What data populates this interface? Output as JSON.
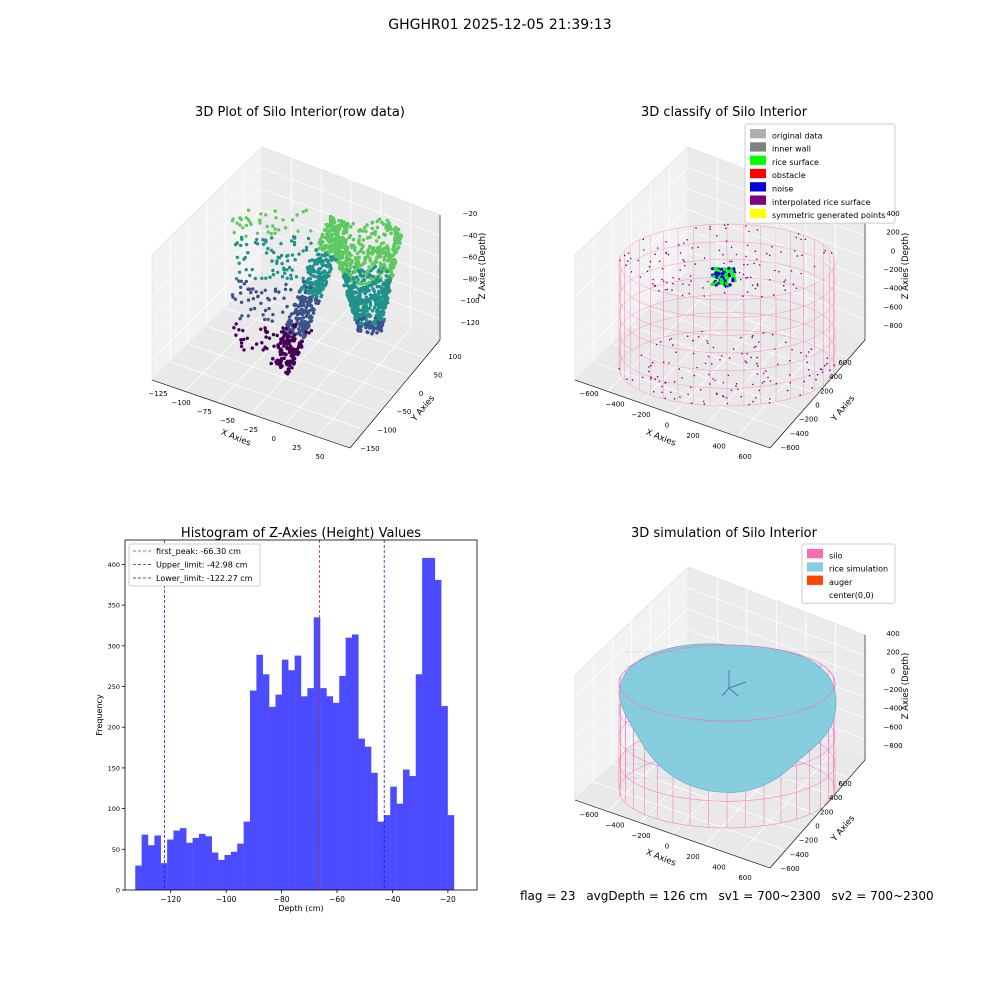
{
  "figure": {
    "suptitle": "GHGHR01 2025-12-05 21:39:13",
    "status": {
      "flag": "flag = 23",
      "avg_depth": "avgDepth = 126 cm",
      "sv1": "sv1 = 700~2300",
      "sv2": "sv2 = 700~2300"
    }
  },
  "colors": {
    "hist_bar": "#4b4bff",
    "first_peak_line": "#d62728",
    "limit_line": "#1f1fbf",
    "silo": "#ff69b4",
    "rice_simulation": "#87cde0",
    "auger": "#ff4500",
    "original_data": "#b0b0b0",
    "inner_wall": "#808080",
    "rice_surface": "#00ff00",
    "obstacle": "#ff0000",
    "noise": "#0000dd",
    "interpolated": "#800080",
    "symmetric": "#ffff00",
    "viridis": [
      "#440154",
      "#3b528b",
      "#21918c",
      "#5ec962",
      "#fde725"
    ]
  },
  "chart_data": [
    {
      "type": "scatter",
      "projection": "3d",
      "title": "3D Plot of Silo Interior(row data)",
      "xlabel": "X Axies",
      "ylabel": "Y Axies",
      "zlabel": "Z Axies (Depth)",
      "xticks": [
        "−125",
        "−100",
        "−75",
        "−50",
        "−25",
        "0",
        "25",
        "50"
      ],
      "yticks": [
        "100",
        "50",
        "0",
        "−50",
        "−100",
        "−150"
      ],
      "zticks": [
        "−20",
        "−40",
        "−60",
        "−80",
        "−100",
        "−120"
      ],
      "xlim": [
        -135,
        60
      ],
      "ylim": [
        -160,
        110
      ],
      "zlim": [
        -135,
        -12
      ],
      "colormap": "viridis"
    },
    {
      "type": "scatter",
      "projection": "3d",
      "title": "3D classify of Silo Interior",
      "xlabel": "X Axies",
      "ylabel": "Y Axies",
      "zlabel": "Z Axies (Depth)",
      "xticks": [
        "−600",
        "−400",
        "−200",
        "0",
        "200",
        "400",
        "600"
      ],
      "yticks": [
        "600",
        "400",
        "200",
        "0",
        "−200",
        "−400",
        "−600"
      ],
      "zticks": [
        "400",
        "200",
        "0",
        "−200",
        "−400",
        "−600",
        "−800"
      ],
      "legend_position": "top-right",
      "legend": [
        {
          "label": "original data",
          "color": "#b0b0b0"
        },
        {
          "label": "inner wall",
          "color": "#808080"
        },
        {
          "label": "rice surface",
          "color": "#00ff00"
        },
        {
          "label": "obstacle",
          "color": "#ff0000"
        },
        {
          "label": "noise",
          "color": "#0000dd"
        },
        {
          "label": "interpolated rice surface",
          "color": "#800080"
        },
        {
          "label": "symmetric generated points",
          "color": "#ffff00"
        }
      ]
    },
    {
      "type": "bar",
      "title": "Histogram of Z-Axies (Height) Values",
      "xlabel": "Depth (cm)",
      "ylabel": "Frequency",
      "xlim": [
        -136.5,
        -9.5
      ],
      "ylim": [
        0,
        430
      ],
      "xticks": [
        -120,
        -100,
        -80,
        -60,
        -40,
        -20
      ],
      "yticks": [
        0,
        50,
        100,
        150,
        200,
        250,
        300,
        350,
        400
      ],
      "bin_start": -132.8,
      "bin_width": 2.3,
      "values": [
        30,
        68,
        55,
        67,
        33,
        62,
        73,
        76,
        58,
        64,
        69,
        66,
        46,
        37,
        43,
        47,
        57,
        84,
        245,
        289,
        265,
        225,
        240,
        283,
        270,
        288,
        238,
        248,
        335,
        248,
        238,
        230,
        263,
        310,
        314,
        186,
        176,
        144,
        84,
        92,
        127,
        106,
        148,
        140,
        265,
        408,
        408,
        381,
        226,
        92
      ],
      "legend_position": "top-left",
      "lines": [
        {
          "label": "first_peak: -66.30 cm",
          "x": -66.3,
          "color": "#d62728"
        },
        {
          "label": "Upper_limit: -42.98 cm",
          "x": -42.98,
          "color": "#1f1fbf"
        },
        {
          "label": "Lower_limit: -122.27 cm",
          "x": -122.27,
          "color": "#1f1fbf"
        }
      ]
    },
    {
      "type": "area",
      "projection": "3d",
      "title": "3D simulation of Silo Interior",
      "xlabel": "X Axies",
      "ylabel": "Y Axies",
      "zlabel": "Z Axies (Depth)",
      "xticks": [
        "−600",
        "−400",
        "−200",
        "0",
        "200",
        "400",
        "600"
      ],
      "yticks": [
        "600",
        "400",
        "200",
        "0",
        "−200",
        "−400",
        "−600"
      ],
      "zticks": [
        "400",
        "200",
        "0",
        "−200",
        "−400",
        "−600",
        "−800"
      ],
      "legend_position": "top-right",
      "legend": [
        {
          "label": "silo",
          "color": "#ff69b4",
          "swatch": true
        },
        {
          "label": "rice simulation",
          "color": "#87cde0",
          "swatch": true
        },
        {
          "label": "auger",
          "color": "#ff4500",
          "swatch": true
        },
        {
          "label": "center(0,0)",
          "color": "#ffffff",
          "swatch": false
        }
      ]
    }
  ]
}
